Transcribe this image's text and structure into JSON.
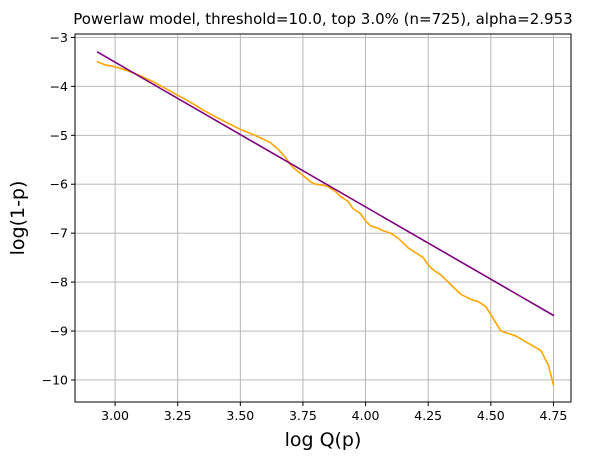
{
  "chart_data": {
    "type": "line",
    "title": "Powerlaw model, threshold=10.0, top 3.0% (n=725), alpha=2.953",
    "xlabel": "log Q(p)",
    "ylabel": "log(1-p)",
    "xlim": [
      2.84,
      4.82
    ],
    "ylim": [
      -10.45,
      -2.93
    ],
    "grid": true,
    "xticks": [
      3.0,
      3.25,
      3.5,
      3.75,
      4.0,
      4.25,
      4.5,
      4.75
    ],
    "xtick_labels": [
      "3.00",
      "3.25",
      "3.50",
      "3.75",
      "4.00",
      "4.25",
      "4.50",
      "4.75"
    ],
    "yticks": [
      -3,
      -4,
      -5,
      -6,
      -7,
      -8,
      -9,
      -10
    ],
    "ytick_labels": [
      "−3",
      "−4",
      "−5",
      "−6",
      "−7",
      "−8",
      "−9",
      "−10"
    ],
    "series": [
      {
        "color": "#ffa500",
        "x": [
          2.93,
          2.96,
          3.0,
          3.05,
          3.1,
          3.15,
          3.2,
          3.25,
          3.3,
          3.35,
          3.4,
          3.45,
          3.5,
          3.55,
          3.58,
          3.6,
          3.62,
          3.65,
          3.68,
          3.7,
          3.72,
          3.75,
          3.78,
          3.8,
          3.83,
          3.85,
          3.88,
          3.9,
          3.93,
          3.95,
          3.98,
          4.0,
          4.02,
          4.05,
          4.07,
          4.1,
          4.13,
          4.15,
          4.17,
          4.2,
          4.23,
          4.25,
          4.27,
          4.3,
          4.32,
          4.35,
          4.38,
          4.4,
          4.42,
          4.45,
          4.48,
          4.51,
          4.54,
          4.57,
          4.6,
          4.65,
          4.7,
          4.73,
          4.75
        ],
        "y": [
          -3.5,
          -3.56,
          -3.6,
          -3.68,
          -3.78,
          -3.9,
          -4.04,
          -4.18,
          -4.32,
          -4.48,
          -4.62,
          -4.75,
          -4.88,
          -4.98,
          -5.05,
          -5.1,
          -5.15,
          -5.28,
          -5.45,
          -5.6,
          -5.7,
          -5.82,
          -5.95,
          -6.0,
          -6.02,
          -6.05,
          -6.15,
          -6.25,
          -6.35,
          -6.5,
          -6.6,
          -6.75,
          -6.85,
          -6.9,
          -6.95,
          -7.0,
          -7.1,
          -7.2,
          -7.3,
          -7.4,
          -7.5,
          -7.65,
          -7.75,
          -7.85,
          -7.95,
          -8.1,
          -8.25,
          -8.3,
          -8.35,
          -8.4,
          -8.5,
          -8.75,
          -9.0,
          -9.05,
          -9.1,
          -9.25,
          -9.4,
          -9.7,
          -10.1
        ]
      },
      {
        "color": "#800080",
        "x": [
          2.93,
          4.75
        ],
        "y": [
          -3.3,
          -8.68
        ]
      }
    ]
  }
}
